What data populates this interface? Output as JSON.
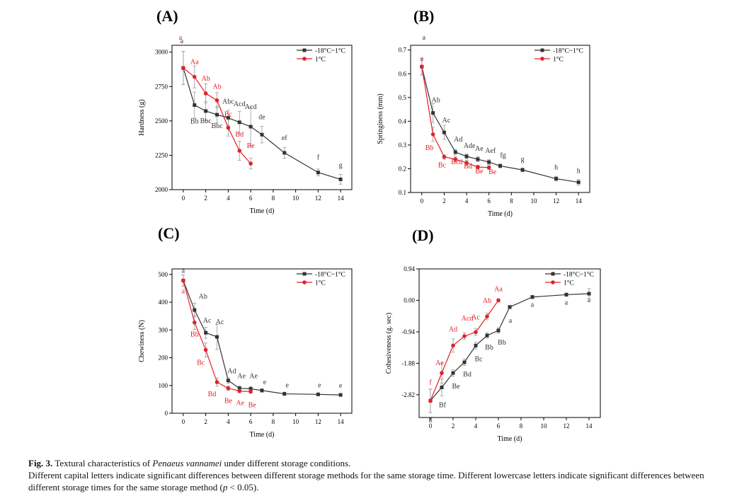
{
  "figure": {
    "caption_label": "Fig. 3.",
    "caption_pre": "Textural characteristics of ",
    "caption_species": "Penaeus vannamei",
    "caption_post": " under different storage conditions.",
    "note_pre": "Different capital letters indicate significant differences between different storage methods for the same storage time. Different lowercase letters indicate significant differences between different storage times for the same storage method (",
    "note_p": "p",
    "note_post": " < 0.05)."
  },
  "colors": {
    "frozen": "#333333",
    "chilled": "#e2202a"
  },
  "chart_data": [
    {
      "panel": "(A)",
      "type": "line",
      "xlabel": "Time (d)",
      "ylabel": "Hardness (g)",
      "xlim": [
        -1,
        15
      ],
      "ylim": [
        2000,
        3050
      ],
      "xticks": [
        0,
        2,
        4,
        6,
        8,
        10,
        12,
        14
      ],
      "yticks": [
        "2000",
        "2250",
        "2500",
        "2750",
        "3000"
      ],
      "legend_position": "top-right",
      "series": [
        {
          "name": "-18°C~1°C",
          "color": "#333333",
          "marker": "square",
          "x": [
            0,
            1,
            2,
            3,
            4,
            5,
            6,
            7,
            9,
            12,
            14
          ],
          "y": [
            2885,
            2615,
            2572,
            2545,
            2522,
            2490,
            2458,
            2400,
            2268,
            2125,
            2075
          ],
          "err": [
            120,
            95,
            70,
            60,
            55,
            80,
            140,
            60,
            40,
            25,
            35
          ],
          "labels": [
            "a",
            "Bb",
            "Bbc",
            "Bbc",
            "Abc",
            "Acd",
            "Acd",
            "de",
            "ef",
            "f",
            "g"
          ]
        },
        {
          "name": "1°C",
          "color": "#e2202a",
          "marker": "circle",
          "x": [
            0,
            1,
            2,
            3,
            4,
            5,
            6
          ],
          "y": [
            2885,
            2820,
            2700,
            2650,
            2450,
            2283,
            2190
          ],
          "err": [
            120,
            80,
            70,
            55,
            60,
            70,
            40
          ],
          "labels": [
            "a",
            "Aa",
            "Ab",
            "Ab",
            "Bc",
            "Bd",
            "Be"
          ]
        }
      ]
    },
    {
      "panel": "(B)",
      "type": "line",
      "xlabel": "Time (d)",
      "ylabel": "Springiness (mm)",
      "xlim": [
        -1,
        15
      ],
      "ylim": [
        0.1,
        0.72
      ],
      "xticks": [
        0,
        2,
        4,
        6,
        8,
        10,
        12,
        14
      ],
      "yticks": [
        "0.1",
        "0.2",
        "0.3",
        "0.4",
        "0.5",
        "0.6",
        "0.7"
      ],
      "legend_position": "top-right",
      "series": [
        {
          "name": "-18°C~1°C",
          "color": "#333333",
          "marker": "square",
          "x": [
            0,
            1,
            2,
            3,
            4,
            5,
            6,
            7,
            9,
            12,
            14
          ],
          "y": [
            0.63,
            0.435,
            0.353,
            0.27,
            0.252,
            0.24,
            0.228,
            0.212,
            0.195,
            0.158,
            0.143
          ],
          "err": [
            0.035,
            0.04,
            0.03,
            0.012,
            0.01,
            0.01,
            0.01,
            0.008,
            0.008,
            0.01,
            0.012
          ],
          "labels": [
            "a",
            "Ab",
            "Ac",
            "Ad",
            "Ade",
            "Ae",
            "Aef",
            "fg",
            "g",
            "h",
            "h"
          ]
        },
        {
          "name": "1°C",
          "color": "#e2202a",
          "marker": "circle",
          "x": [
            0,
            1,
            2,
            3,
            4,
            5,
            6
          ],
          "y": [
            0.63,
            0.345,
            0.25,
            0.24,
            0.225,
            0.207,
            0.205
          ],
          "err": [
            0.035,
            0.03,
            0.01,
            0.01,
            0.01,
            0.008,
            0.008
          ],
          "labels": [
            "a",
            "Bb",
            "Bc",
            "Bcd",
            "Bd",
            "Be",
            "Be"
          ]
        }
      ]
    },
    {
      "panel": "(C)",
      "type": "line",
      "xlabel": "Time (d)",
      "ylabel": "Chewiness (N)",
      "xlim": [
        -1,
        15
      ],
      "ylim": [
        0,
        520
      ],
      "xticks": [
        0,
        2,
        4,
        6,
        8,
        10,
        12,
        14
      ],
      "yticks": [
        "0",
        "100",
        "200",
        "300",
        "400",
        "500"
      ],
      "legend_position": "top-right",
      "series": [
        {
          "name": "-18°C~1°C",
          "color": "#333333",
          "marker": "square",
          "x": [
            0,
            1,
            2,
            3,
            4,
            5,
            6,
            7,
            9,
            12,
            14
          ],
          "y": [
            478,
            372,
            290,
            275,
            118,
            90,
            88,
            82,
            70,
            68,
            66
          ],
          "err": [
            20,
            25,
            20,
            45,
            10,
            8,
            8,
            6,
            6,
            5,
            5
          ],
          "labels": [
            "a",
            "Ab",
            "Ac",
            "Ac",
            "Ad",
            "Ae",
            "Ae",
            "e",
            "e",
            "e",
            "e"
          ]
        },
        {
          "name": "1°C",
          "color": "#e2202a",
          "marker": "circle",
          "x": [
            0,
            1,
            2,
            3,
            4,
            5,
            6
          ],
          "y": [
            478,
            327,
            228,
            112,
            90,
            80,
            78
          ],
          "err": [
            20,
            25,
            25,
            15,
            8,
            6,
            6
          ],
          "labels": [
            "a",
            "Bb",
            "Bc",
            "Bd",
            "Be",
            "Ae",
            "Be"
          ]
        }
      ]
    },
    {
      "panel": "(D)",
      "type": "line",
      "xlabel": "Time (d)",
      "ylabel": "Cohesiveness (g. sec)",
      "xlim": [
        -1,
        15
      ],
      "ylim": [
        -3.5,
        0.94
      ],
      "xticks": [
        0,
        2,
        4,
        6,
        8,
        10,
        12,
        14
      ],
      "yticks": [
        "-2.82",
        "-1.88",
        "-0.94",
        "0.00",
        "0.94"
      ],
      "ytick_values": [
        -2.82,
        -1.88,
        -0.94,
        0.0,
        0.94
      ],
      "legend_position": "top-right",
      "series": [
        {
          "name": "-18°C~1°C",
          "color": "#333333",
          "marker": "square",
          "x": [
            0,
            1,
            2,
            3,
            4,
            5,
            6,
            7,
            9,
            12,
            14
          ],
          "y": [
            -3.0,
            -2.6,
            -2.17,
            -1.85,
            -1.35,
            -1.05,
            -0.9,
            -0.2,
            0.1,
            0.17,
            0.2
          ],
          "err": [
            0.35,
            0.25,
            0.1,
            0.1,
            0.1,
            0.08,
            0.08,
            0.05,
            0.05,
            0.05,
            0.15
          ],
          "labels": [
            "g",
            "Bf",
            "Be",
            "Bd",
            "Bc",
            "Bb",
            "Bb",
            "a",
            "a",
            "a",
            "a"
          ]
        },
        {
          "name": "1°C",
          "color": "#e2202a",
          "marker": "circle",
          "x": [
            0,
            1,
            2,
            3,
            4,
            5,
            6
          ],
          "y": [
            -3.0,
            -2.17,
            -1.35,
            -1.07,
            -0.95,
            -0.48,
            0.0
          ],
          "err": [
            0.35,
            0.3,
            0.2,
            0.1,
            0.1,
            0.1,
            0.05
          ],
          "labels": [
            "f",
            "Ae",
            "Ad",
            "Acd",
            "Ac",
            "Ab",
            "Aa"
          ]
        }
      ]
    }
  ]
}
